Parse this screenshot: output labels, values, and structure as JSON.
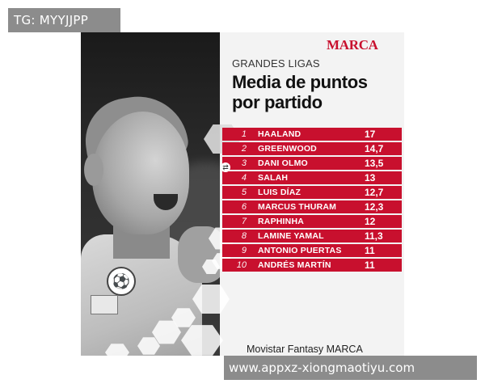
{
  "watermarks": {
    "top": "TG: MYYJJPP",
    "bottom": "www.appxz-xiongmaotiyu.com"
  },
  "graphic": {
    "brand": "MARCA",
    "subtitle": "GRANDES LIGAS",
    "title_line1": "Media de puntos",
    "title_line2": "por partido",
    "footer": "Movistar Fantasy MARCA",
    "accent_color": "#c8102e"
  },
  "ranking": [
    {
      "rank": "1",
      "name": "HAALAND",
      "points": "17"
    },
    {
      "rank": "2",
      "name": "GREENWOOD",
      "points": "14,7"
    },
    {
      "rank": "3",
      "name": "DANI OLMO",
      "points": "13,5"
    },
    {
      "rank": "4",
      "name": "SALAH",
      "points": "13"
    },
    {
      "rank": "5",
      "name": "LUIS DÍAZ",
      "points": "12,7"
    },
    {
      "rank": "6",
      "name": "MARCUS THURAM",
      "points": "12,3"
    },
    {
      "rank": "7",
      "name": "RAPHINHA",
      "points": "12"
    },
    {
      "rank": "8",
      "name": "LAMINE YAMAL",
      "points": "11,3"
    },
    {
      "rank": "9",
      "name": "ANTONIO PUERTAS",
      "points": "11"
    },
    {
      "rank": "10",
      "name": "ANDRÉS MARTÍN",
      "points": "11"
    }
  ]
}
